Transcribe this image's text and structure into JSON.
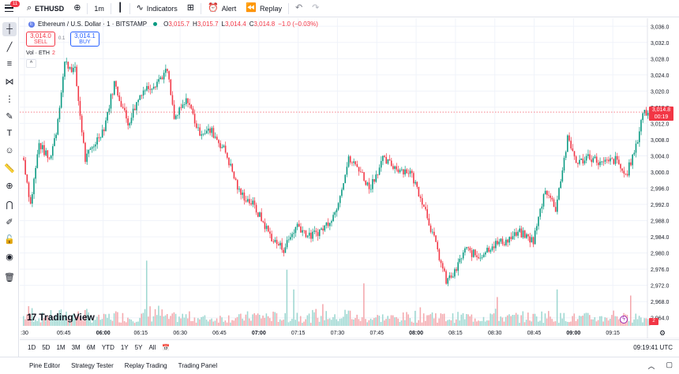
{
  "toolbar": {
    "notifications": "11",
    "symbol": "ETHUSD",
    "interval": "1m",
    "indicators_label": "Indicators",
    "alert_label": "Alert",
    "replay_label": "Replay"
  },
  "legend": {
    "instrument": "Ethereum / U.S. Dollar · 1 · BITSTAMP",
    "coin_icon": "E",
    "o_key": "O",
    "o_val": "3,015.7",
    "h_key": "H",
    "h_val": "3,015.7",
    "l_key": "L",
    "l_val": "3,014.4",
    "c_key": "C",
    "c_val": "3,014.8",
    "change": "−1.0 (−0.03%)"
  },
  "trade": {
    "sell_price": "3,014.0",
    "sell_label": "SELL",
    "spread": "0.1",
    "buy_price": "3,014.1",
    "buy_label": "BUY"
  },
  "volume_legend": {
    "label": "Vol · ETH",
    "value": "2",
    "collapse_glyph": "^"
  },
  "logo": {
    "mark": "17",
    "name": "TradingView"
  },
  "price_axis": {
    "last_price": "3,014.8",
    "countdown": "00:19",
    "volume_last": "2",
    "settings_glyph": "⚙"
  },
  "range_bar": {
    "ranges": [
      "1D",
      "5D",
      "1M",
      "3M",
      "6M",
      "YTD",
      "1Y",
      "5Y",
      "All"
    ],
    "clock": "09:19:41 UTC"
  },
  "bottom_tabs": [
    "Pine Editor",
    "Strategy Tester",
    "Replay Trading",
    "Trading Panel"
  ],
  "colors": {
    "up": "#089981",
    "down": "#f23645",
    "up_vol": "#9fd8d2",
    "down_vol": "#f4a9ae",
    "grid": "#f0f3fa",
    "axis_text": "#131722"
  },
  "chart_data": {
    "type": "candlestick",
    "ylim": [
      2962,
      3038
    ],
    "y_ticks": [
      3036,
      3032,
      3028,
      3024,
      3020,
      3016,
      3012,
      3008,
      3004,
      3000,
      2996,
      2992,
      2988,
      2984,
      2980,
      2976,
      2972,
      2968,
      2964
    ],
    "x_ticks": [
      ":30",
      "05:45",
      "06:00",
      "06:15",
      "06:30",
      "06:45",
      "07:00",
      "07:15",
      "07:30",
      "07:45",
      "08:00",
      "08:15",
      "08:30",
      "08:45",
      "09:00",
      "09:15"
    ],
    "x_ticks_bold": [
      "06:00",
      "07:00",
      "08:00",
      "09:00"
    ],
    "keypoints": [
      [
        0,
        3003,
        40
      ],
      [
        4,
        2992,
        70
      ],
      [
        9,
        3007,
        30
      ],
      [
        15,
        3003,
        45
      ],
      [
        19,
        3010,
        35
      ],
      [
        24,
        3027,
        60
      ],
      [
        30,
        3025,
        40
      ],
      [
        36,
        3003,
        55
      ],
      [
        40,
        3006,
        25
      ],
      [
        47,
        3011,
        30
      ],
      [
        53,
        3022,
        45
      ],
      [
        61,
        3012,
        35
      ],
      [
        69,
        3020,
        40
      ],
      [
        77,
        3022,
        75
      ],
      [
        84,
        3025,
        30
      ],
      [
        88,
        3013,
        35
      ],
      [
        96,
        3018,
        40
      ],
      [
        102,
        3010,
        30
      ],
      [
        110,
        3010,
        25
      ],
      [
        118,
        3005,
        35
      ],
      [
        126,
        2995,
        30
      ],
      [
        134,
        2992,
        45
      ],
      [
        146,
        2983,
        40
      ],
      [
        152,
        2981,
        30
      ],
      [
        160,
        2987,
        50
      ],
      [
        167,
        2984,
        35
      ],
      [
        175,
        2986,
        65
      ],
      [
        182,
        2990,
        30
      ],
      [
        190,
        3003,
        60
      ],
      [
        196,
        3001,
        25
      ],
      [
        202,
        2996,
        30
      ],
      [
        210,
        3003,
        35
      ],
      [
        218,
        3001,
        30
      ],
      [
        226,
        3000,
        40
      ],
      [
        234,
        2992,
        55
      ],
      [
        243,
        2979,
        45
      ],
      [
        247,
        2973,
        30
      ],
      [
        252,
        2975,
        35
      ],
      [
        258,
        2981,
        40
      ],
      [
        266,
        2979,
        30
      ],
      [
        274,
        2982,
        55
      ],
      [
        282,
        2983,
        30
      ],
      [
        290,
        2985,
        40
      ],
      [
        298,
        2983,
        35
      ],
      [
        305,
        2996,
        50
      ],
      [
        311,
        2991,
        30
      ],
      [
        318,
        3008,
        40
      ],
      [
        324,
        3002,
        30
      ],
      [
        330,
        3004,
        35
      ],
      [
        338,
        3002,
        30
      ],
      [
        346,
        3003,
        55
      ],
      [
        352,
        2999,
        30
      ],
      [
        358,
        3006,
        40
      ],
      [
        362,
        3015,
        35
      ],
      [
        366,
        3014,
        20
      ]
    ],
    "spikes": [
      [
        72,
        215
      ],
      [
        154,
        185
      ],
      [
        158,
        120
      ],
      [
        199,
        140
      ],
      [
        277,
        95
      ],
      [
        312,
        120
      ],
      [
        355,
        100
      ]
    ]
  }
}
